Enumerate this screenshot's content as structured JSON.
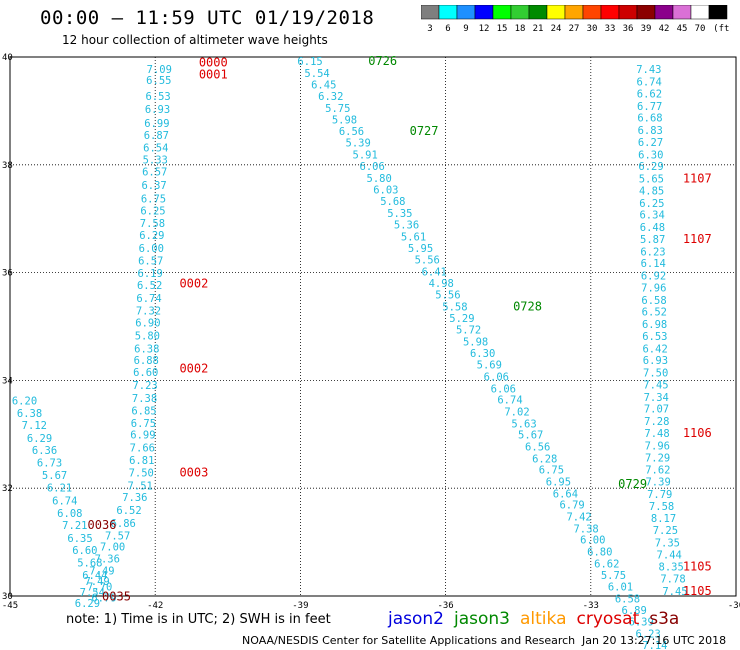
{
  "title": "00:00 – 11:59 UTC 01/19/2018",
  "subtitle": "12 hour collection of altimeter wave heights",
  "colorbar": {
    "colors": [
      "#7f7f7f",
      "#00ffff",
      "#1e90ff",
      "#0000ff",
      "#00ff00",
      "#32cd32",
      "#008b00",
      "#ffff00",
      "#ffa500",
      "#ff4500",
      "#ff0000",
      "#cd0000",
      "#8b0000",
      "#8b008b",
      "#da70d6",
      "#ffffff",
      "#000000"
    ],
    "labels": [
      "3",
      "6",
      "9",
      "12",
      "15",
      "18",
      "21",
      "24",
      "27",
      "30",
      "33",
      "36",
      "39",
      "42",
      "45",
      "70",
      "(ft)"
    ]
  },
  "note": "note: 1) Time is in UTC; 2) SWH is in feet",
  "legend": [
    {
      "name": "jason2",
      "color": "#0000dd"
    },
    {
      "name": "jason3",
      "color": "#008800"
    },
    {
      "name": "altika",
      "color": "#ff9900"
    },
    {
      "name": "cryosat",
      "color": "#dd0000"
    },
    {
      "name": "s3a",
      "color": "#880000"
    }
  ],
  "footer_left": "NOAA/NESDIS Center for Satellite Applications and Research",
  "footer_right": "Jan 20 13:27:16 UTC 2018",
  "chart_data": {
    "type": "scatter",
    "xlim": [
      -45,
      -30
    ],
    "ylim": [
      30,
      40
    ],
    "xticks": [
      "-45",
      "-42",
      "-39",
      "-36",
      "-33",
      "-30"
    ],
    "yticks": [
      "30",
      "32",
      "34",
      "36",
      "38",
      "40"
    ],
    "grid": true,
    "tracks": [
      {
        "satellite": "cryosat",
        "color": "#dd0000",
        "lon": -41.8,
        "points": [
          [
            "39.7",
            "7.09"
          ],
          [
            "39.5",
            "6.55"
          ],
          [
            "39.2",
            "6.53"
          ],
          [
            "38.96",
            "6.93"
          ],
          [
            "38.7",
            "6.99"
          ],
          [
            "38.48",
            "6.87"
          ],
          [
            "38.25",
            "6.54"
          ],
          [
            "38.02",
            "5.33"
          ],
          [
            "37.8",
            "6.57"
          ],
          [
            "37.55",
            "6.37"
          ],
          [
            "37.3",
            "6.75"
          ],
          [
            "37.08",
            "6.25"
          ],
          [
            "36.85",
            "7.58"
          ],
          [
            "36.62",
            "6.29"
          ],
          [
            "36.38",
            "6.00"
          ],
          [
            "36.15",
            "6.57"
          ],
          [
            "35.92",
            "6.19"
          ],
          [
            "35.7",
            "6.52"
          ],
          [
            "35.45",
            "6.74"
          ],
          [
            "35.22",
            "7.32"
          ],
          [
            "35.0",
            "6.90"
          ],
          [
            "34.76",
            "5.80"
          ],
          [
            "34.52",
            "6.38"
          ],
          [
            "34.3",
            "6.88"
          ],
          [
            "34.08",
            "6.60"
          ],
          [
            "33.84",
            "7.23"
          ],
          [
            "33.6",
            "7.38"
          ],
          [
            "33.37",
            "6.85"
          ],
          [
            "33.14",
            "6.75"
          ],
          [
            "32.92",
            "6.99"
          ],
          [
            "32.68",
            "7.66"
          ],
          [
            "32.45",
            "6.81"
          ],
          [
            "32.22",
            "7.50"
          ],
          [
            "31.98",
            "7.51"
          ],
          [
            "31.76",
            "7.36"
          ],
          [
            "31.52",
            "6.52"
          ],
          [
            "31.28",
            "6.86"
          ],
          [
            "31.05",
            "7.57"
          ],
          [
            "30.84",
            "7.00"
          ],
          [
            "30.62",
            "7.36"
          ],
          [
            "30.4",
            "7.49"
          ],
          [
            "30.2",
            "7.49"
          ],
          [
            "30.0",
            "7.54"
          ],
          [
            "29.8",
            "6.29"
          ]
        ],
        "labels": [
          [
            "39.82",
            "0000"
          ],
          [
            "39.6",
            "0001"
          ],
          [
            "35.72",
            "0002"
          ],
          [
            "34.15",
            "0002"
          ],
          [
            "32.22",
            "0003"
          ]
        ]
      },
      {
        "satellite": "s3a",
        "color": "#880000",
        "lon": -44.2,
        "points": [
          [
            "33.55",
            "6.20"
          ],
          [
            "33.32",
            "6.38"
          ],
          [
            "33.1",
            "7.12"
          ],
          [
            "32.86",
            "6.29"
          ],
          [
            "32.63",
            "6.36"
          ],
          [
            "32.4",
            "6.73"
          ],
          [
            "32.17",
            "5.67"
          ],
          [
            "31.94",
            "6.21"
          ],
          [
            "31.7",
            "6.74"
          ],
          [
            "31.47",
            "6.08"
          ],
          [
            "31.24",
            "7.21"
          ],
          [
            "31.0",
            "6.35"
          ],
          [
            "30.78",
            "6.60"
          ],
          [
            "30.55",
            "5.68"
          ],
          [
            "30.32",
            "6.44"
          ],
          [
            "30.1",
            "7.70"
          ],
          [
            "29.9",
            "6.79"
          ]
        ],
        "labels": [
          [
            "31.24",
            "0036"
          ],
          [
            "29.92",
            "0035"
          ]
        ]
      },
      {
        "satellite": "jason3",
        "color": "#008800",
        "lon": -38.5,
        "points": [
          [
            "39.85",
            "6.15"
          ],
          [
            "39.63",
            "5.54"
          ],
          [
            "39.42",
            "6.45"
          ],
          [
            "39.2",
            "6.32"
          ],
          [
            "38.98",
            "5.75"
          ],
          [
            "38.77",
            "5.98"
          ],
          [
            "38.55",
            "6.56"
          ],
          [
            "38.34",
            "5.39"
          ],
          [
            "38.12",
            "5.91"
          ],
          [
            "37.9",
            "6.06"
          ],
          [
            "37.68",
            "5.80"
          ],
          [
            "37.47",
            "6.03"
          ],
          [
            "37.25",
            "5.68"
          ],
          [
            "37.03",
            "5.35"
          ],
          [
            "36.82",
            "5.36"
          ],
          [
            "36.6",
            "5.61"
          ],
          [
            "36.38",
            "5.95"
          ],
          [
            "36.17",
            "5.56"
          ],
          [
            "35.95",
            "6.41"
          ],
          [
            "35.73",
            "4.98"
          ],
          [
            "35.52",
            "5.56"
          ],
          [
            "35.3",
            "5.58"
          ],
          [
            "35.08",
            "5.29"
          ],
          [
            "34.87",
            "5.72"
          ],
          [
            "34.65",
            "5.98"
          ],
          [
            "34.43",
            "6.30"
          ],
          [
            "34.22",
            "5.69"
          ],
          [
            "34.0",
            "6.06"
          ],
          [
            "33.78",
            "6.06"
          ],
          [
            "33.57",
            "6.74"
          ],
          [
            "33.35",
            "7.02"
          ],
          [
            "33.13",
            "5.63"
          ],
          [
            "32.92",
            "5.67"
          ],
          [
            "32.7",
            "6.56"
          ],
          [
            "32.48",
            "6.28"
          ],
          [
            "32.27",
            "6.75"
          ],
          [
            "32.05",
            "6.95"
          ],
          [
            "31.83",
            "6.64"
          ],
          [
            "31.62",
            "6.79"
          ],
          [
            "31.4",
            "7.42"
          ],
          [
            "31.18",
            "7.38"
          ],
          [
            "30.97",
            "6.00"
          ],
          [
            "30.75",
            "6.80"
          ],
          [
            "30.53",
            "6.62"
          ],
          [
            "30.32",
            "5.75"
          ],
          [
            "30.1",
            "6.01"
          ],
          [
            "29.88",
            "6.58"
          ],
          [
            "29.67",
            "6.89"
          ],
          [
            "29.45",
            "6.39"
          ],
          [
            "29.23",
            "6.23"
          ],
          [
            "29.02",
            "7.14"
          ],
          [
            "28.8",
            "6.80"
          ],
          [
            "28.6",
            "7.15"
          ]
        ],
        "labels": [
          [
            "39.85",
            "0726"
          ],
          [
            "38.55",
            "0727"
          ],
          [
            "35.3",
            "0728"
          ],
          [
            "32.0",
            "0729"
          ],
          [
            "28.8",
            "0730"
          ]
        ]
      },
      {
        "satellite": "cryosat",
        "color": "#dd0000",
        "lon": -31.2,
        "points": [
          [
            "39.7",
            "7.43"
          ],
          [
            "39.47",
            "6.74"
          ],
          [
            "39.25",
            "6.62"
          ],
          [
            "39.02",
            "6.77"
          ],
          [
            "38.8",
            "6.68"
          ],
          [
            "38.57",
            "6.83"
          ],
          [
            "38.35",
            "6.27"
          ],
          [
            "38.12",
            "6.30"
          ],
          [
            "37.9",
            "6.29"
          ],
          [
            "37.67",
            "5.65"
          ],
          [
            "37.45",
            "4.85"
          ],
          [
            "37.22",
            "6.25"
          ],
          [
            "37.0",
            "6.34"
          ],
          [
            "36.77",
            "6.48"
          ],
          [
            "36.55",
            "5.87"
          ],
          [
            "36.32",
            "6.23"
          ],
          [
            "36.1",
            "6.14"
          ],
          [
            "35.87",
            "6.92"
          ],
          [
            "35.65",
            "7.96"
          ],
          [
            "35.42",
            "6.58"
          ],
          [
            "35.2",
            "6.52"
          ],
          [
            "34.97",
            "6.98"
          ],
          [
            "34.75",
            "6.53"
          ],
          [
            "34.52",
            "6.42"
          ],
          [
            "34.3",
            "6.93"
          ],
          [
            "34.07",
            "7.50"
          ],
          [
            "33.85",
            "7.45"
          ],
          [
            "33.62",
            "7.34"
          ],
          [
            "33.4",
            "7.07"
          ],
          [
            "33.17",
            "7.28"
          ],
          [
            "32.95",
            "7.48"
          ],
          [
            "32.72",
            "7.96"
          ],
          [
            "32.5",
            "7.29"
          ],
          [
            "32.27",
            "7.62"
          ],
          [
            "32.05",
            "7.39"
          ],
          [
            "31.82",
            "7.79"
          ],
          [
            "31.6",
            "7.58"
          ],
          [
            "31.37",
            "8.17"
          ],
          [
            "31.15",
            "7.25"
          ],
          [
            "30.92",
            "7.35"
          ],
          [
            "30.7",
            "7.44"
          ],
          [
            "30.47",
            "8.35"
          ],
          [
            "30.25",
            "7.78"
          ],
          [
            "30.02",
            "7.45"
          ]
        ],
        "labels": [
          [
            "37.67",
            "1107"
          ],
          [
            "36.55",
            "1107"
          ],
          [
            "32.95",
            "1106"
          ],
          [
            "30.47",
            "1105"
          ],
          [
            "30.02",
            "1105"
          ]
        ]
      }
    ]
  }
}
